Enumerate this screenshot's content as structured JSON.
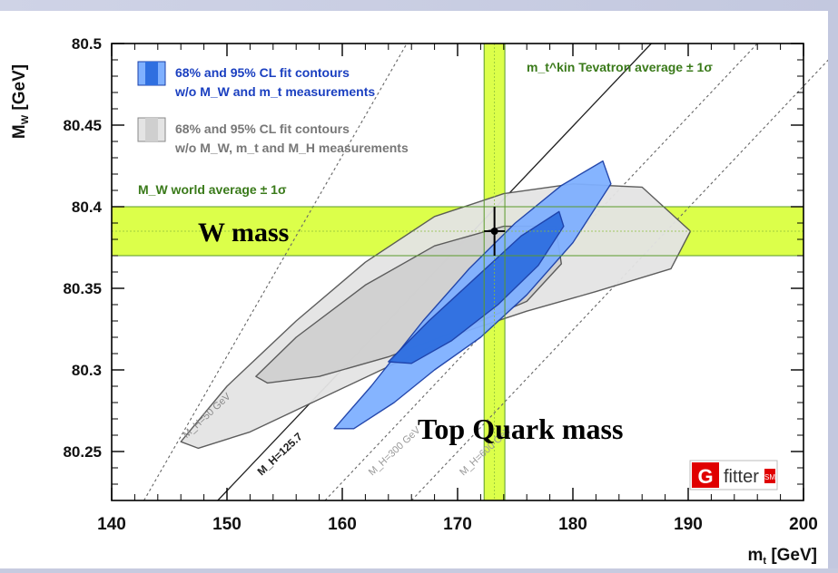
{
  "chart_data": {
    "type": "contour",
    "xlabel": "m_t [GeV]",
    "ylabel": "M_W [GeV]",
    "xlim": [
      140,
      200
    ],
    "ylim": [
      80.22,
      80.5
    ],
    "xticks": [
      140,
      150,
      160,
      170,
      180,
      190,
      200
    ],
    "yticks": [
      80.25,
      80.3,
      80.35,
      80.4,
      80.45,
      80.5
    ],
    "legend": [
      {
        "line1": "68% and 95% CL fit contours",
        "line2": "w/o M_W and m_t measurements",
        "color": "#2f6fe0"
      },
      {
        "line1": "68% and 95% CL fit contours",
        "line2": "w/o M_W, m_t and M_H measurements",
        "color": "#9a9a9a"
      }
    ],
    "bands": {
      "mw": {
        "label": "M_W world average ± 1σ",
        "center": 80.385,
        "low": 80.37,
        "high": 80.4,
        "color": "#d6ff2a"
      },
      "mt": {
        "label": "m_t^kin Tevatron average ± 1σ",
        "center": 173.2,
        "low": 172.3,
        "high": 174.1,
        "color": "#d6ff2a"
      }
    },
    "measurement": {
      "x": 173.2,
      "y": 80.385,
      "xerr": 0.9,
      "yerr": 0.015
    },
    "higgs_lines": [
      {
        "label": "M_H=50 GeV",
        "points": [
          [
            142.8,
            80.22
          ],
          [
            165.6,
            80.5
          ]
        ],
        "style": "dashed"
      },
      {
        "label": "M_H=125.7",
        "points": [
          [
            149.2,
            80.22
          ],
          [
            186.8,
            80.5
          ]
        ],
        "style": "solid"
      },
      {
        "label": "M_H=300 GeV",
        "points": [
          [
            158.5,
            80.22
          ],
          [
            196.0,
            80.5
          ]
        ],
        "style": "dashed"
      },
      {
        "label": "M_H=600 GeV",
        "points": [
          [
            166.0,
            80.22
          ],
          [
            203.5,
            80.5
          ]
        ],
        "style": "dashed"
      }
    ],
    "contours": {
      "gray95": [
        [
          146.0,
          80.256
        ],
        [
          150.0,
          80.29
        ],
        [
          156.0,
          80.33
        ],
        [
          162.0,
          80.366
        ],
        [
          168.0,
          80.394
        ],
        [
          174.0,
          80.408
        ],
        [
          180.0,
          80.414
        ],
        [
          186.0,
          80.412
        ],
        [
          190.2,
          80.385
        ],
        [
          188.5,
          80.362
        ],
        [
          182.0,
          80.348
        ],
        [
          176.0,
          80.336
        ],
        [
          170.0,
          80.322
        ],
        [
          164.0,
          80.302
        ],
        [
          158.0,
          80.282
        ],
        [
          152.0,
          80.262
        ],
        [
          147.5,
          80.252
        ]
      ],
      "gray68": [
        [
          152.5,
          80.296
        ],
        [
          156.0,
          80.32
        ],
        [
          162.0,
          80.352
        ],
        [
          168.0,
          80.376
        ],
        [
          174.0,
          80.388
        ],
        [
          178.5,
          80.388
        ],
        [
          179.0,
          80.365
        ],
        [
          176.0,
          80.342
        ],
        [
          170.0,
          80.324
        ],
        [
          164.0,
          80.308
        ],
        [
          158.0,
          80.296
        ],
        [
          153.5,
          80.292
        ]
      ],
      "blue95": [
        [
          159.3,
          80.264
        ],
        [
          162.5,
          80.29
        ],
        [
          167.0,
          80.33
        ],
        [
          171.0,
          80.362
        ],
        [
          175.0,
          80.39
        ],
        [
          179.0,
          80.413
        ],
        [
          182.6,
          80.428
        ],
        [
          183.3,
          80.414
        ],
        [
          180.0,
          80.378
        ],
        [
          176.0,
          80.346
        ],
        [
          172.0,
          80.32
        ],
        [
          168.0,
          80.3
        ],
        [
          164.5,
          80.28
        ],
        [
          161.0,
          80.264
        ]
      ],
      "blue68": [
        [
          164.0,
          80.305
        ],
        [
          167.5,
          80.33
        ],
        [
          171.5,
          80.356
        ],
        [
          175.5,
          80.382
        ],
        [
          178.8,
          80.397
        ],
        [
          179.2,
          80.388
        ],
        [
          177.0,
          80.364
        ],
        [
          173.5,
          80.34
        ],
        [
          169.5,
          80.318
        ],
        [
          166.0,
          80.304
        ]
      ]
    },
    "contour_colors": {
      "gray95": "#e4e4e4",
      "gray68": "#d0d0d0",
      "blue95": "#7fb0ff",
      "blue68": "#2f6fe0"
    },
    "annotations": {
      "w_mass": "W mass",
      "top_mass": "Top Quark mass"
    },
    "logo": {
      "g": "G",
      "text": "fitter",
      "sm": "SM"
    },
    "grid": false
  }
}
